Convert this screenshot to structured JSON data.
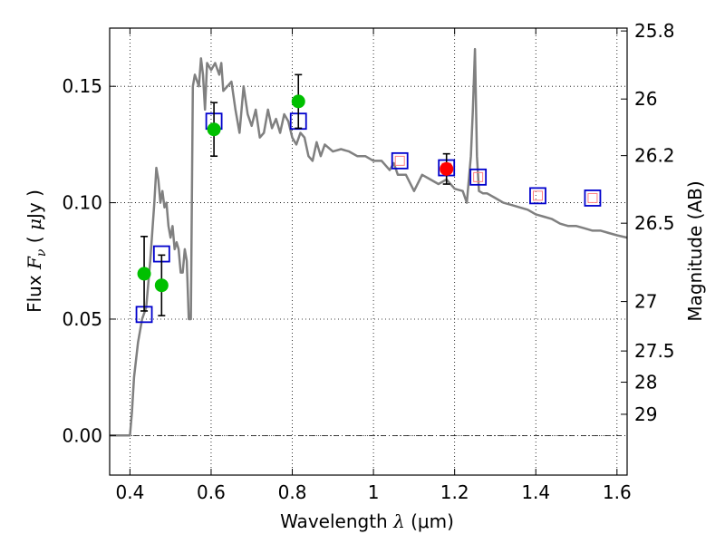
{
  "chart_data": {
    "type": "scatter",
    "xlabel": "Wavelength  λ (μm)",
    "ylabel": "Flux  Fν  ( μJy )",
    "ylabel_parts": {
      "prefix": "Flux  ",
      "var": "F",
      "sub": "ν",
      "middle": "  ( ",
      "mu": "μ",
      "suffix": "Jy )"
    },
    "xlabel_parts": {
      "prefix": "Wavelength  ",
      "lambda": "λ",
      "unit": " (μm)"
    },
    "y2label": "Magnitude (AB)",
    "xlim": [
      0.35,
      1.625
    ],
    "ylim": [
      -0.017,
      0.175
    ],
    "x_ticks": [
      0.4,
      0.6,
      0.8,
      1.0,
      1.2,
      1.4,
      1.6
    ],
    "x_tick_labels": [
      "0.4",
      "0.6",
      "0.8",
      "1",
      "1.2",
      "1.4",
      "1.6"
    ],
    "y_ticks": [
      0.0,
      0.05,
      0.1,
      0.15
    ],
    "y_tick_labels": [
      "0.00",
      "0.05",
      "0.10",
      "0.15"
    ],
    "mag_ticks": [
      "25.8",
      "26",
      "26.2",
      "26.5",
      "27",
      "27.5",
      "28",
      "29"
    ],
    "grid": true,
    "zero_line": true,
    "colors": {
      "model": "#808080",
      "photometry": "#00c000",
      "spectro_point": "#ff0000",
      "model_band": "#0000cc",
      "model_band_inner": "#ff7f7f",
      "errorbar": "#000000"
    },
    "series": [
      {
        "type": "line",
        "x": [
          0.35,
          0.4,
          0.405,
          0.41,
          0.42,
          0.43,
          0.44,
          0.45,
          0.46,
          0.465,
          0.47,
          0.475,
          0.48,
          0.485,
          0.49,
          0.495,
          0.5,
          0.505,
          0.51,
          0.515,
          0.52,
          0.525,
          0.53,
          0.535,
          0.54,
          0.545,
          0.55,
          0.555,
          0.56,
          0.57,
          0.575,
          0.58,
          0.585,
          0.59,
          0.6,
          0.61,
          0.62,
          0.625,
          0.63,
          0.64,
          0.65,
          0.66,
          0.67,
          0.68,
          0.69,
          0.7,
          0.71,
          0.72,
          0.73,
          0.74,
          0.75,
          0.76,
          0.77,
          0.78,
          0.79,
          0.8,
          0.81,
          0.82,
          0.83,
          0.84,
          0.85,
          0.86,
          0.87,
          0.88,
          0.9,
          0.92,
          0.94,
          0.96,
          0.98,
          1.0,
          1.02,
          1.04,
          1.05,
          1.06,
          1.08,
          1.1,
          1.12,
          1.14,
          1.16,
          1.18,
          1.2,
          1.22,
          1.23,
          1.24,
          1.245,
          1.25,
          1.255,
          1.26,
          1.27,
          1.28,
          1.3,
          1.32,
          1.34,
          1.36,
          1.38,
          1.4,
          1.42,
          1.44,
          1.46,
          1.48,
          1.5,
          1.52,
          1.54,
          1.56,
          1.58,
          1.6,
          1.625
        ],
        "y": [
          0.0,
          0.0,
          0.01,
          0.025,
          0.04,
          0.05,
          0.055,
          0.075,
          0.1,
          0.115,
          0.11,
          0.1,
          0.105,
          0.098,
          0.1,
          0.09,
          0.085,
          0.09,
          0.08,
          0.083,
          0.08,
          0.07,
          0.07,
          0.08,
          0.075,
          0.05,
          0.05,
          0.15,
          0.155,
          0.15,
          0.162,
          0.155,
          0.14,
          0.16,
          0.157,
          0.16,
          0.155,
          0.16,
          0.148,
          0.15,
          0.152,
          0.14,
          0.13,
          0.15,
          0.138,
          0.133,
          0.14,
          0.128,
          0.13,
          0.14,
          0.132,
          0.136,
          0.13,
          0.138,
          0.135,
          0.128,
          0.125,
          0.13,
          0.128,
          0.12,
          0.118,
          0.126,
          0.12,
          0.125,
          0.122,
          0.123,
          0.122,
          0.12,
          0.12,
          0.118,
          0.118,
          0.114,
          0.117,
          0.112,
          0.112,
          0.105,
          0.112,
          0.11,
          0.108,
          0.11,
          0.106,
          0.105,
          0.1,
          0.12,
          0.14,
          0.166,
          0.12,
          0.105,
          0.104,
          0.104,
          0.102,
          0.1,
          0.099,
          0.098,
          0.097,
          0.095,
          0.094,
          0.093,
          0.091,
          0.09,
          0.09,
          0.089,
          0.088,
          0.088,
          0.087,
          0.086,
          0.085
        ]
      },
      {
        "type": "scatter",
        "marker": "square",
        "x": [
          0.435,
          0.478,
          0.607,
          0.815,
          1.065,
          1.18,
          1.258,
          1.405,
          1.54
        ],
        "y": [
          0.052,
          0.078,
          0.135,
          0.135,
          0.118,
          0.115,
          0.111,
          0.103,
          0.102
        ]
      },
      {
        "type": "scatter",
        "marker": "circle",
        "x": [
          0.435,
          0.478,
          0.607,
          0.815
        ],
        "y": [
          0.0695,
          0.0645,
          0.1315,
          0.1435
        ],
        "yerr": [
          0.016,
          0.013,
          0.0115,
          0.0115
        ]
      },
      {
        "type": "scatter",
        "marker": "circle",
        "x": [
          1.18
        ],
        "y": [
          0.1145
        ],
        "yerr": [
          0.0065
        ]
      }
    ]
  }
}
